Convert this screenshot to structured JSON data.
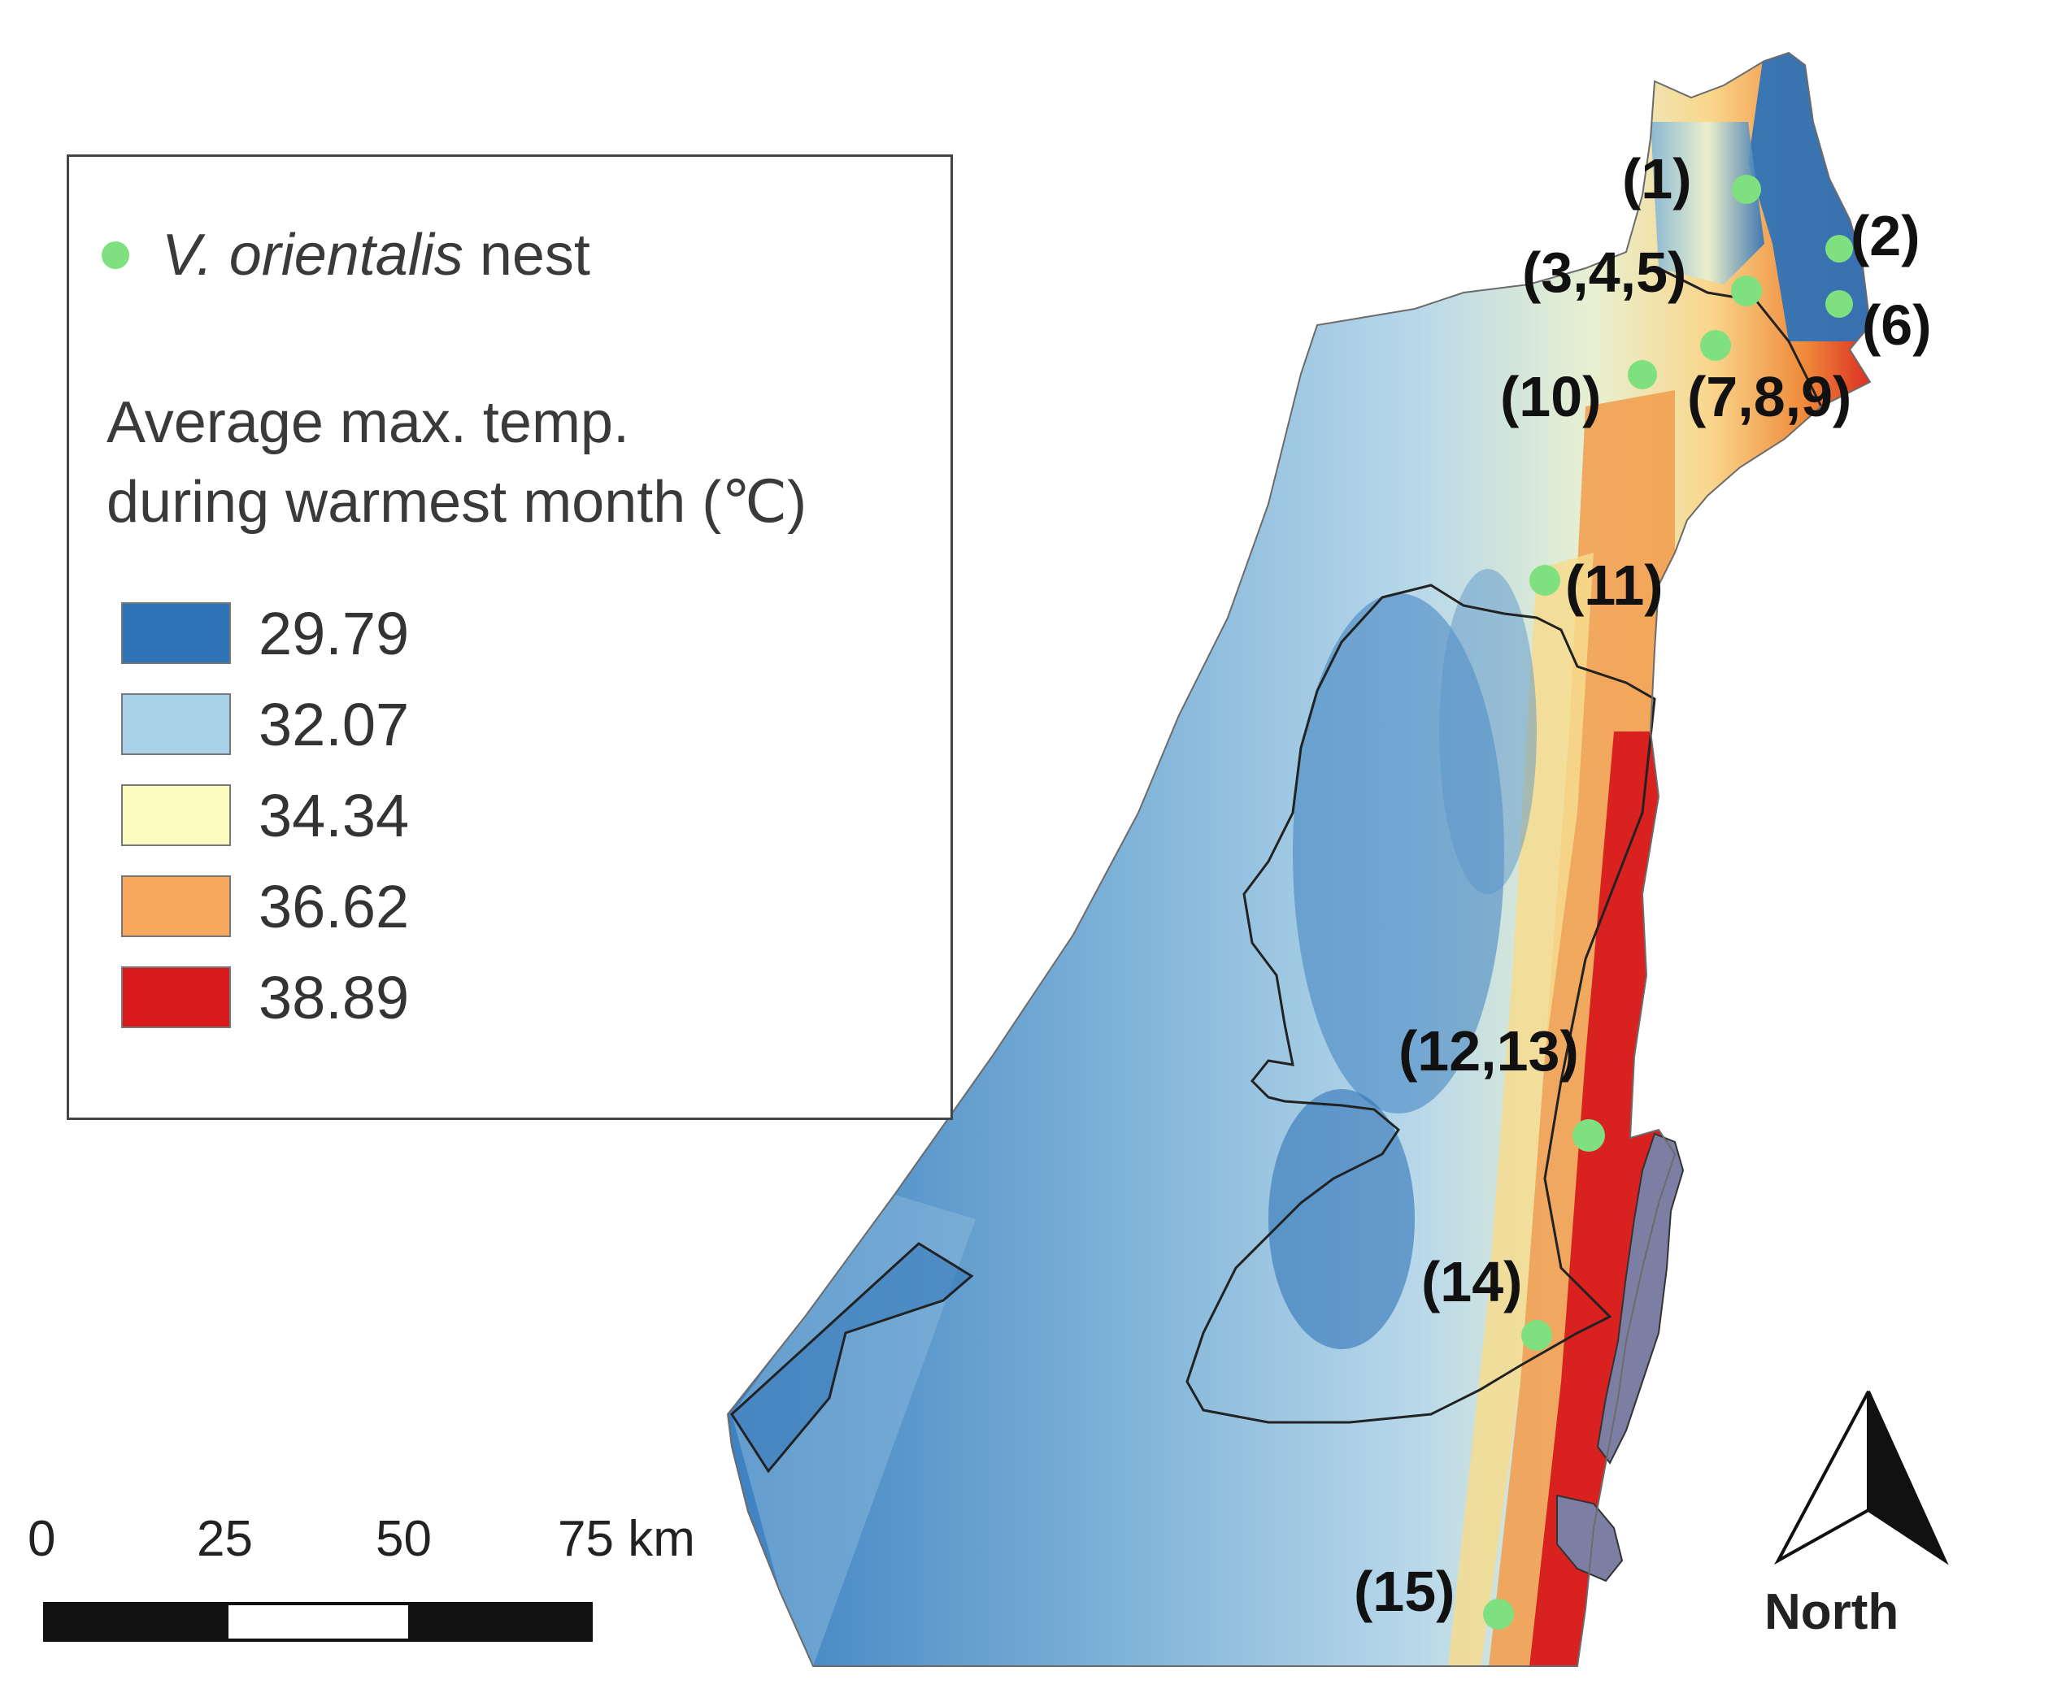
{
  "legend": {
    "nest_label_italic": "V. orientalis",
    "nest_label_rest": " nest",
    "nest_color": "#7fe07f",
    "title_line1": "Average max. temp.",
    "title_line2": "during warmest month (℃)",
    "classes": [
      {
        "label": "29.79",
        "color": "#2f73b7"
      },
      {
        "label": "32.07",
        "color": "#a8d0e6"
      },
      {
        "label": "34.34",
        "color": "#fdfcc0"
      },
      {
        "label": "36.62",
        "color": "#f7a85e"
      },
      {
        "label": "38.89",
        "color": "#d7191c"
      }
    ]
  },
  "sites": [
    {
      "id": "site-1",
      "label": "(1)"
    },
    {
      "id": "site-2",
      "label": "(2)"
    },
    {
      "id": "site-3-4-5",
      "label": "(3,4,5)"
    },
    {
      "id": "site-6",
      "label": "(6)"
    },
    {
      "id": "site-7-8-9",
      "label": "(7,8,9)"
    },
    {
      "id": "site-10",
      "label": "(10)"
    },
    {
      "id": "site-11",
      "label": "(11)"
    },
    {
      "id": "site-12-13",
      "label": "(12,13)"
    },
    {
      "id": "site-14",
      "label": "(14)"
    },
    {
      "id": "site-15",
      "label": "(15)"
    }
  ],
  "scale_bar": {
    "ticks": [
      "0",
      "25",
      "50",
      "75 km"
    ]
  },
  "north_arrow": {
    "label": "North",
    "icon": "north-arrow-icon"
  },
  "colors": {
    "water": "#7c7fa3",
    "border_line": "#222222"
  }
}
